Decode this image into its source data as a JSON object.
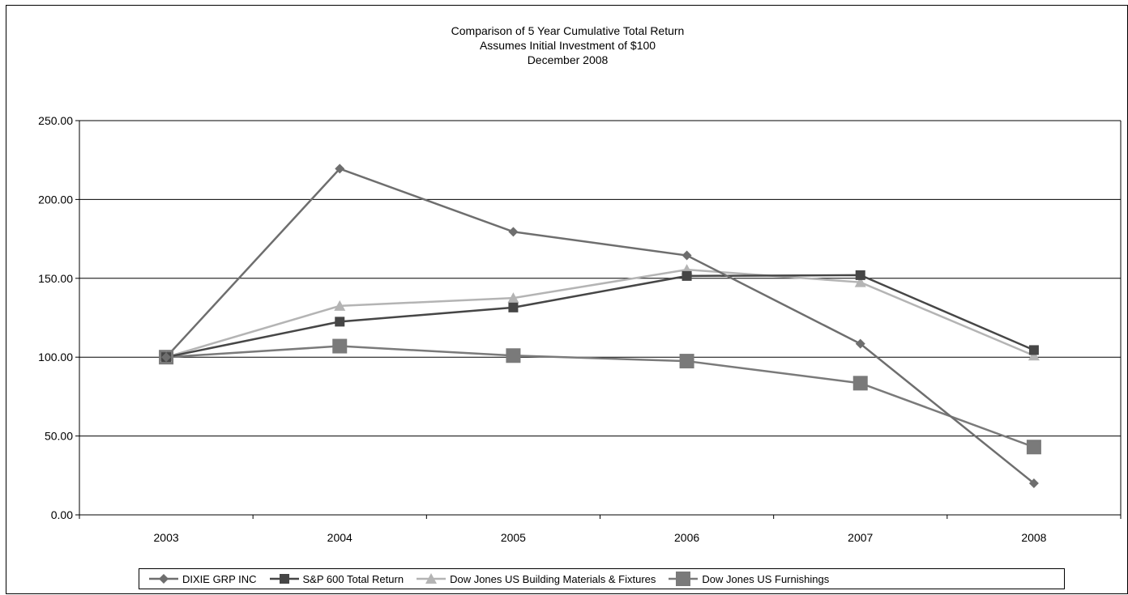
{
  "chart_data": {
    "type": "line",
    "title_lines": [
      "Comparison of 5 Year Cumulative Total Return",
      "Assumes Initial Investment of $100",
      "December 2008"
    ],
    "xlabel": "",
    "ylabel": "",
    "categories": [
      "2003",
      "2004",
      "2005",
      "2006",
      "2007",
      "2008"
    ],
    "ylim": [
      0,
      250
    ],
    "yticks": [
      "0.00",
      "50.00",
      "100.00",
      "150.00",
      "200.00",
      "250.00"
    ],
    "grid": "horizontal",
    "legend_position": "bottom",
    "series": [
      {
        "name": "DIXIE GRP INC",
        "values": [
          100,
          219.5,
          179.5,
          164.5,
          108.5,
          20
        ],
        "color": "#6e6e6e",
        "marker": "diamond"
      },
      {
        "name": "S&P 600 Total Return",
        "values": [
          100,
          122.5,
          131.5,
          151.5,
          152,
          104.5
        ],
        "color": "#464646",
        "marker": "square-small"
      },
      {
        "name": "Dow Jones US Building Materials & Fixtures",
        "values": [
          100,
          132.5,
          137.5,
          155.5,
          147.5,
          101
        ],
        "color": "#b4b4b4",
        "marker": "triangle"
      },
      {
        "name": "Dow Jones US Furnishings",
        "values": [
          100,
          107,
          101,
          97.5,
          83.5,
          43
        ],
        "color": "#7a7a7a",
        "marker": "square-large"
      }
    ]
  }
}
